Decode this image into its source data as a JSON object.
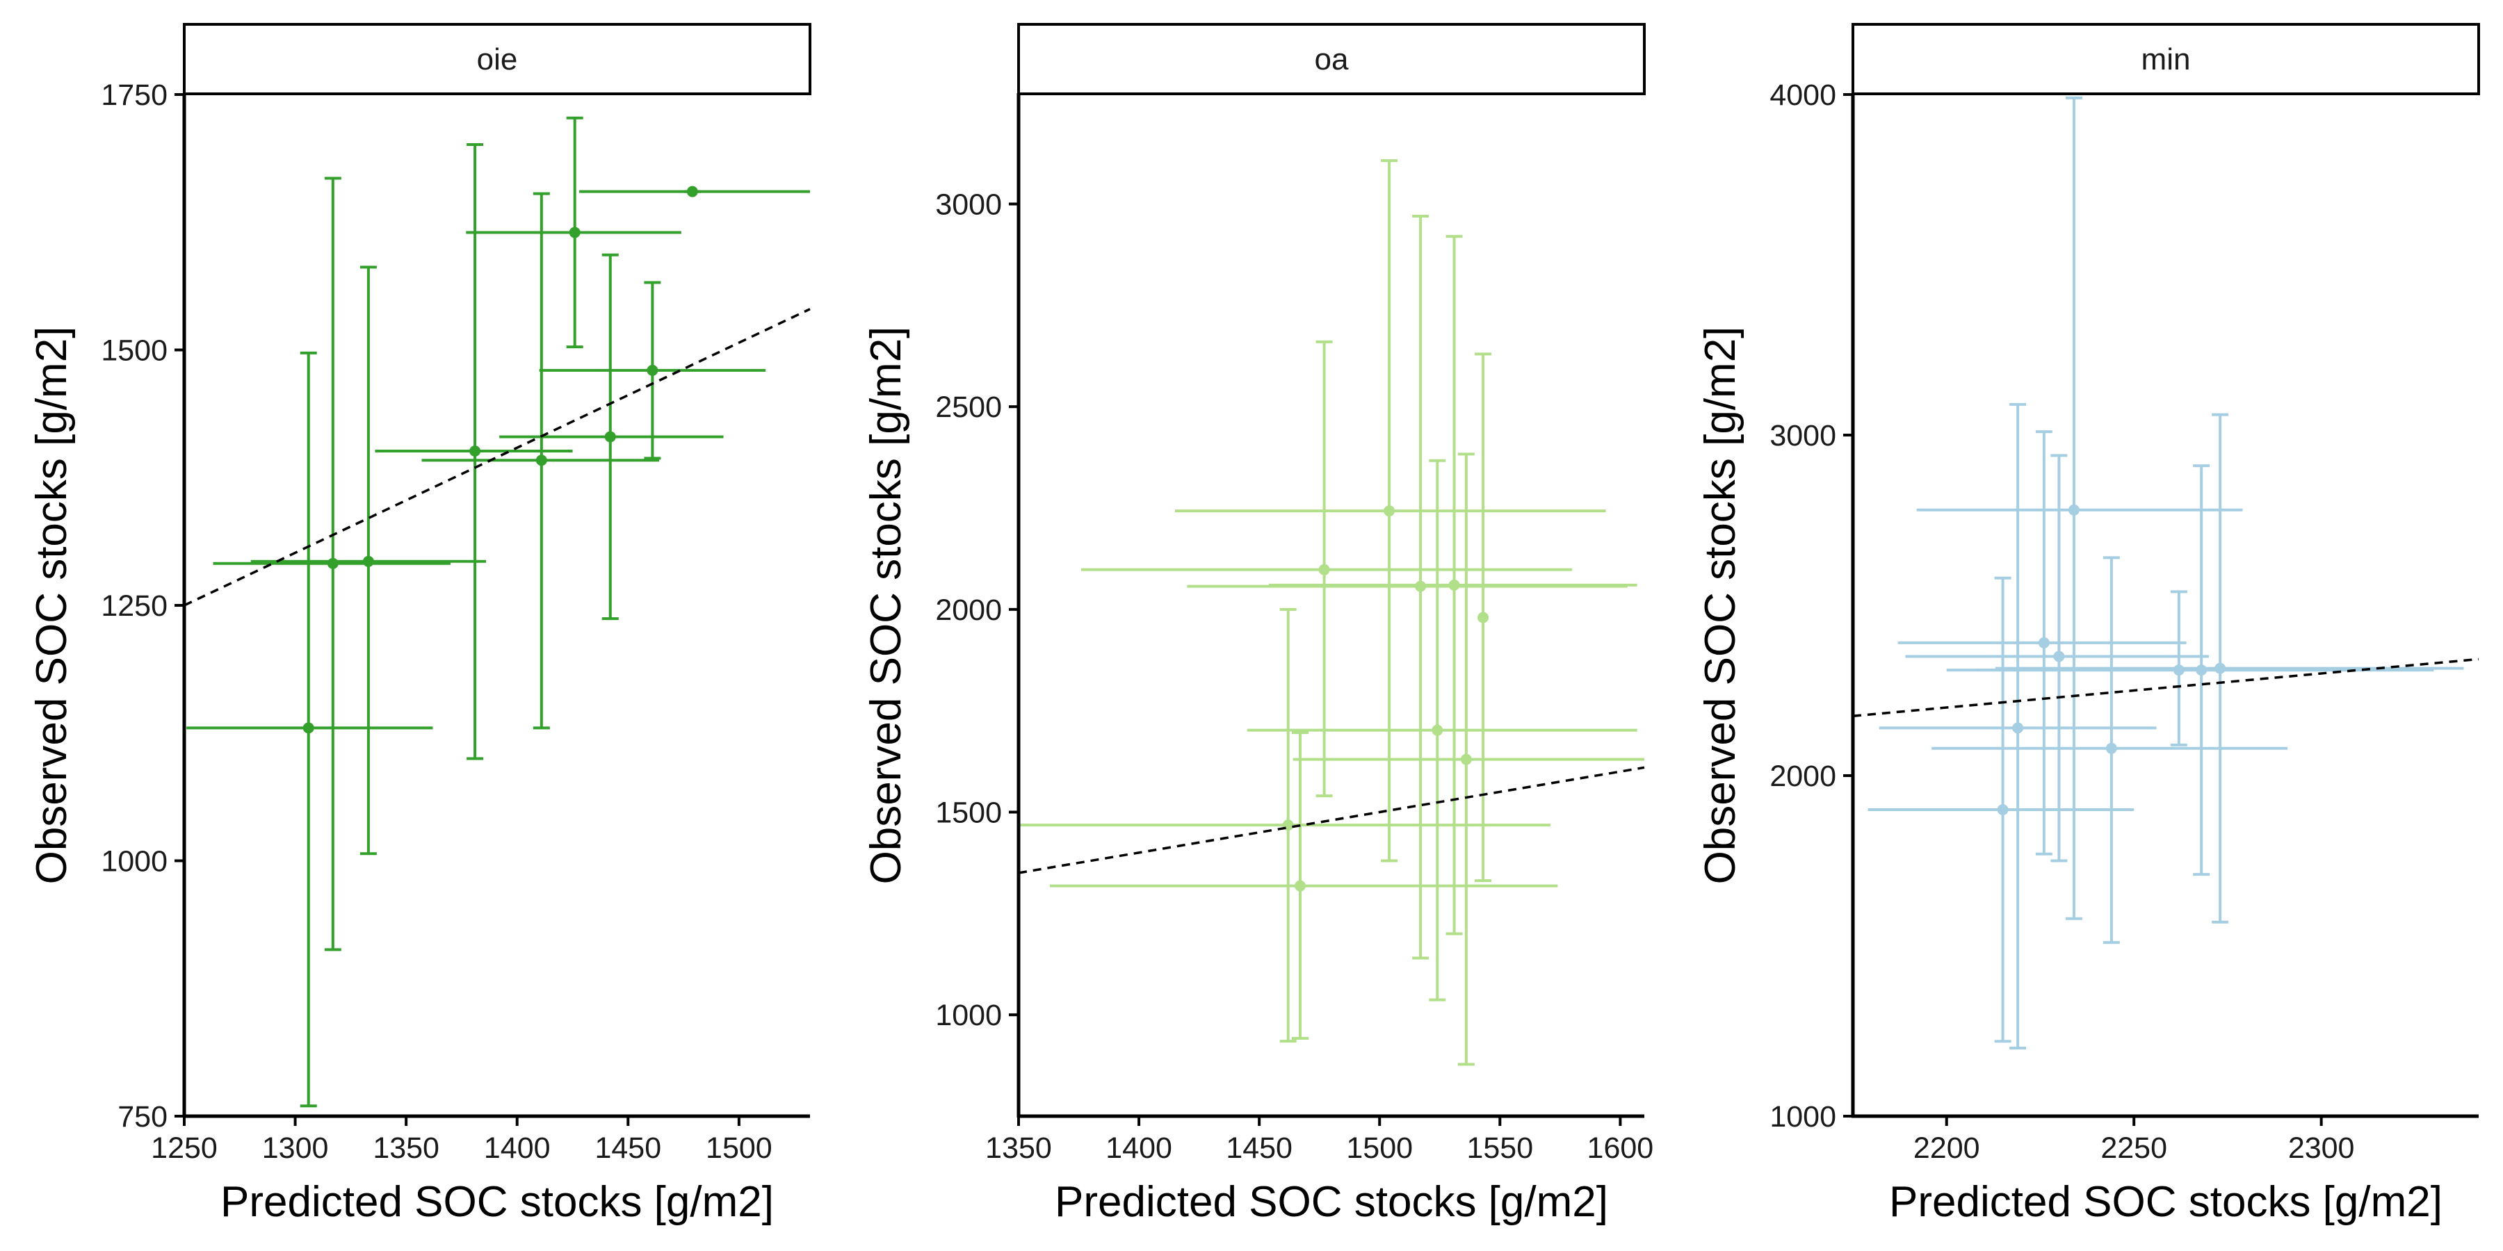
{
  "chart_data": [
    {
      "type": "scatter",
      "panel": "oie",
      "color": "#33a02c",
      "xlabel": "Predicted SOC stocks [g/m2]",
      "ylabel": "Observed SOC stocks [g/m2]",
      "xlim": [
        1250,
        1532
      ],
      "ylim": [
        750,
        1750
      ],
      "xticks": [
        1250,
        1300,
        1350,
        1400,
        1450,
        1500
      ],
      "yticks": [
        750,
        1000,
        1250,
        1500,
        1750
      ],
      "fit_line": {
        "style": "dashed",
        "color": "#000000",
        "x": [
          1250,
          1532
        ],
        "y": [
          1250,
          1540
        ]
      },
      "points": [
        {
          "x": 1306,
          "y": 1130,
          "xmin": 1251,
          "xmax": 1362,
          "ymin": 760,
          "ymax": 1497
        },
        {
          "x": 1317,
          "y": 1291,
          "xmin": 1263,
          "xmax": 1370,
          "ymin": 913,
          "ymax": 1668
        },
        {
          "x": 1333,
          "y": 1293,
          "xmin": 1280,
          "xmax": 1386,
          "ymin": 1007,
          "ymax": 1581
        },
        {
          "x": 1381,
          "y": 1401,
          "xmin": 1336,
          "xmax": 1425,
          "ymin": 1100,
          "ymax": 1701
        },
        {
          "x": 1411,
          "y": 1392,
          "xmin": 1357,
          "xmax": 1464,
          "ymin": 1130,
          "ymax": 1653
        },
        {
          "x": 1426,
          "y": 1615,
          "xmin": 1377,
          "xmax": 1474,
          "ymin": 1503,
          "ymax": 1727
        },
        {
          "x": 1442,
          "y": 1415,
          "xmin": 1392,
          "xmax": 1493,
          "ymin": 1237,
          "ymax": 1593
        },
        {
          "x": 1461,
          "y": 1480,
          "xmin": 1410,
          "xmax": 1512,
          "ymin": 1394,
          "ymax": 1566
        },
        {
          "x": 1479,
          "y": 1655,
          "xmin": 1428,
          "xmax": 1532,
          "ymin": 1655,
          "ymax": 1655
        }
      ]
    },
    {
      "type": "scatter",
      "panel": "oa",
      "color": "#b2df8a",
      "xlabel": "Predicted SOC stocks [g/m2]",
      "ylabel": "Observed SOC stocks [g/m2]",
      "xlim": [
        1350,
        1610
      ],
      "ylim": [
        750,
        3270
      ],
      "xticks": [
        1350,
        1400,
        1450,
        1500,
        1550,
        1600
      ],
      "yticks": [
        1000,
        1500,
        2000,
        2500,
        3000
      ],
      "fit_line": {
        "style": "dashed",
        "color": "#000000",
        "x": [
          1350,
          1610
        ],
        "y": [
          1350,
          1610
        ]
      },
      "points": [
        {
          "x": 1462,
          "y": 1468,
          "xmin": 1350,
          "xmax": 1571,
          "ymin": 935,
          "ymax": 2000
        },
        {
          "x": 1467,
          "y": 1318,
          "xmin": 1363,
          "xmax": 1574,
          "ymin": 942,
          "ymax": 1696
        },
        {
          "x": 1477,
          "y": 2098,
          "xmin": 1376,
          "xmax": 1580,
          "ymin": 1540,
          "ymax": 2660
        },
        {
          "x": 1504,
          "y": 2243,
          "xmin": 1415,
          "xmax": 1594,
          "ymin": 1380,
          "ymax": 3107
        },
        {
          "x": 1517,
          "y": 2057,
          "xmin": 1420,
          "xmax": 1603,
          "ymin": 1140,
          "ymax": 2970
        },
        {
          "x": 1524,
          "y": 1702,
          "xmin": 1445,
          "xmax": 1607,
          "ymin": 1037,
          "ymax": 2367
        },
        {
          "x": 1531,
          "y": 2060,
          "xmin": 1454,
          "xmax": 1607,
          "ymin": 1200,
          "ymax": 2920
        },
        {
          "x": 1536,
          "y": 1630,
          "xmin": 1464,
          "xmax": 1610,
          "ymin": 878,
          "ymax": 2383
        },
        {
          "x": 1543,
          "y": 1980,
          "xmin": 1543,
          "xmax": 1543,
          "ymin": 1331,
          "ymax": 2630
        }
      ]
    },
    {
      "type": "scatter",
      "panel": "min",
      "color": "#a6cee3",
      "xlabel": "Predicted SOC stocks [g/m2]",
      "ylabel": "Observed SOC stocks [g/m2]",
      "xlim": [
        2175,
        2342
      ],
      "ylim": [
        1000,
        4000
      ],
      "xticks": [
        2200,
        2250,
        2300
      ],
      "yticks": [
        1000,
        2000,
        3000,
        4000
      ],
      "fit_line": {
        "style": "dashed",
        "color": "#000000",
        "x": [
          2175,
          2342
        ],
        "y": [
          2175,
          2342
        ]
      },
      "points": [
        {
          "x": 2215,
          "y": 1900,
          "xmin": 2179,
          "xmax": 2250,
          "ymin": 1220,
          "ymax": 2580
        },
        {
          "x": 2219,
          "y": 2140,
          "xmin": 2182,
          "xmax": 2256,
          "ymin": 1200,
          "ymax": 3090
        },
        {
          "x": 2226,
          "y": 2390,
          "xmin": 2187,
          "xmax": 2264,
          "ymin": 1770,
          "ymax": 3010
        },
        {
          "x": 2230,
          "y": 2350,
          "xmin": 2189,
          "xmax": 2270,
          "ymin": 1750,
          "ymax": 2940
        },
        {
          "x": 2234,
          "y": 2780,
          "xmin": 2192,
          "xmax": 2279,
          "ymin": 1580,
          "ymax": 3990
        },
        {
          "x": 2244,
          "y": 2080,
          "xmin": 2196,
          "xmax": 2291,
          "ymin": 1510,
          "ymax": 2640
        },
        {
          "x": 2262,
          "y": 2310,
          "xmin": 2200,
          "xmax": 2326,
          "ymin": 2090,
          "ymax": 2540
        },
        {
          "x": 2268,
          "y": 2310,
          "xmin": 2208,
          "xmax": 2330,
          "ymin": 1710,
          "ymax": 2910
        },
        {
          "x": 2273,
          "y": 2315,
          "xmin": 2213,
          "xmax": 2338,
          "ymin": 1570,
          "ymax": 3060
        }
      ]
    }
  ]
}
